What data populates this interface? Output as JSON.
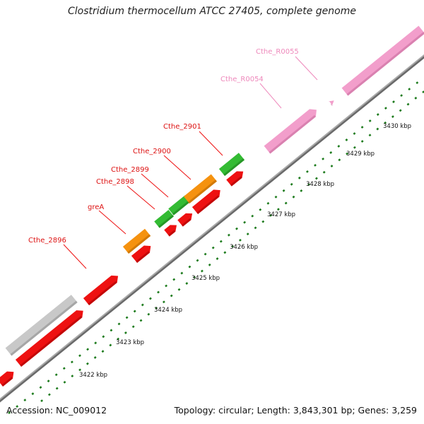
{
  "title": "Clostridium thermocellum ATCC 27405, complete genome",
  "footer": {
    "accession": "Accession: NC_009012",
    "summary": "Topology: circular; Length: 3,843,301 bp; Genes: 3,259"
  },
  "colors": {
    "background": "#ffffff",
    "backbone": "#8c8c8c",
    "tick": "#1b7a1b",
    "cds_red": "#ee1111",
    "cds_orange": "#f5920f",
    "cds_green": "#33bb33",
    "cds_grey": "#c8c8c8",
    "rna_pink": "#f29ecb",
    "label_red": "#dd1111",
    "label_pink": "#ee88bb"
  },
  "axis": {
    "kbp_labels": [
      "3422 kbp",
      "3423 kbp",
      "3424 kbp",
      "3425 kbp",
      "3426 kbp",
      "3427 kbp",
      "3428 kbp",
      "3429 kbp",
      "3430 kbp"
    ]
  },
  "gene_labels": [
    {
      "text": "Cthe_2896",
      "color": "red"
    },
    {
      "text": "greA",
      "color": "red"
    },
    {
      "text": "Cthe_2898",
      "color": "red"
    },
    {
      "text": "Cthe_2899",
      "color": "red"
    },
    {
      "text": "Cthe_2900",
      "color": "red"
    },
    {
      "text": "Cthe_2901",
      "color": "red"
    },
    {
      "text": "Cthe_R0054",
      "color": "pink"
    },
    {
      "text": "Cthe_R0055",
      "color": "pink"
    }
  ]
}
